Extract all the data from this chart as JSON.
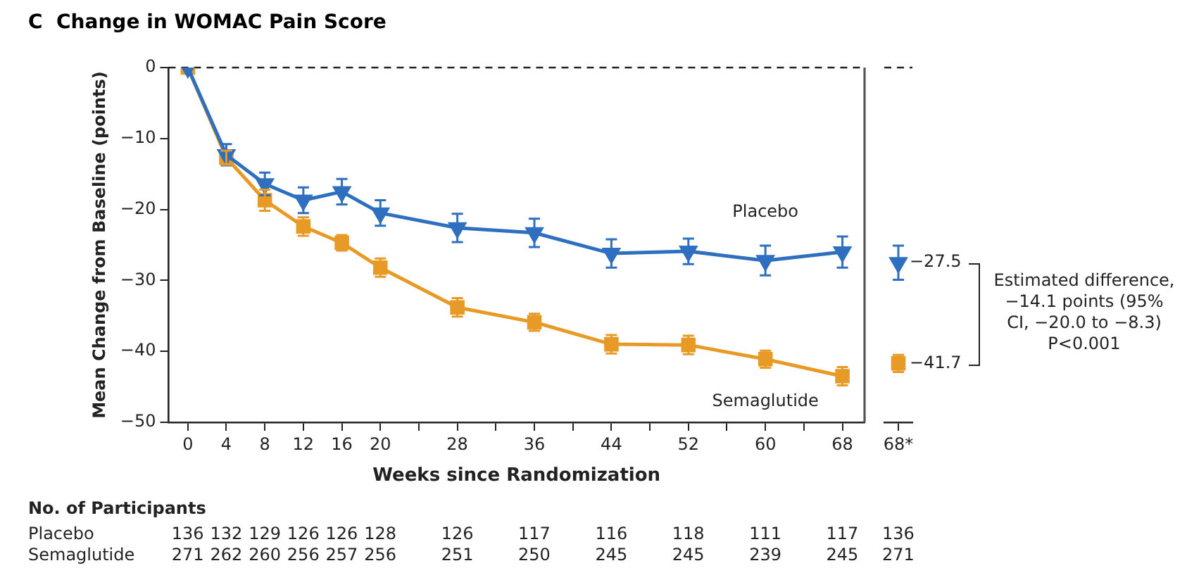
{
  "chart_data": [
    {
      "type": "line",
      "title": "C  Change in WOMAC Pain Score",
      "xlabel": "Weeks since Randomization",
      "ylabel": "Mean Change from Baseline (points)",
      "x": [
        0,
        4,
        8,
        12,
        16,
        20,
        28,
        36,
        44,
        52,
        60,
        68
      ],
      "series": [
        {
          "name": "Placebo",
          "color": "#2e6fc0",
          "marker": "triangle",
          "values": [
            0,
            -12.3,
            -16.4,
            -18.7,
            -17.5,
            -20.5,
            -22.6,
            -23.3,
            -26.2,
            -25.9,
            -27.2,
            -26.0
          ],
          "errors": [
            null,
            1.5,
            1.6,
            1.8,
            1.8,
            1.8,
            2,
            2,
            2,
            1.8,
            2.1,
            2.2
          ]
        },
        {
          "name": "Semaglutide",
          "color": "#e89a26",
          "marker": "square",
          "values": [
            0,
            -12.7,
            -18.7,
            -22.4,
            -24.7,
            -28.2,
            -33.8,
            -35.9,
            -39.0,
            -39.1,
            -41.1,
            -43.5
          ],
          "errors": [
            null,
            1,
            1.5,
            1.3,
            1.1,
            1.3,
            1.3,
            1.2,
            1.3,
            1.3,
            1.2,
            1.3
          ]
        }
      ],
      "xlim": [
        -2,
        70.3
      ],
      "xticks": [
        0,
        4,
        8,
        12,
        16,
        20,
        {
          "value": 24,
          "label": null
        },
        28,
        {
          "value": 32,
          "label": null
        },
        36,
        {
          "value": 40,
          "label": null
        },
        44,
        {
          "value": 48,
          "label": null
        },
        52,
        {
          "value": 56,
          "label": null
        },
        60,
        {
          "value": 64,
          "label": null
        },
        68
      ],
      "ylim": [
        -50,
        0
      ],
      "yticks": [
        {
          "value": -50,
          "label": "−50"
        },
        {
          "value": -40,
          "label": "−40"
        },
        {
          "value": -30,
          "label": "−30"
        },
        {
          "value": -20,
          "label": "−20"
        },
        {
          "value": -10,
          "label": "−10"
        },
        0
      ],
      "ref_lines": [
        {
          "axis": "y",
          "value": 0,
          "line_style": "dashed",
          "color": "#222222"
        },
        {
          "axis": "x",
          "value": 70.3,
          "color": "#555555"
        }
      ],
      "legend": false,
      "annotations": [
        "No. of Participants",
        "Placebo",
        "136 132 129 126 126 128 126 117 116 118 111 117",
        "Semaglutide",
        "271 262 260 256 257 256 251 250 245 245 239 245"
      ]
    },
    {
      "type": "scatter",
      "categories": [
        "68*"
      ],
      "series": [
        {
          "color": "#2e6fc0",
          "marker": "triangle",
          "values": [
            -27.5
          ],
          "errors": [
            2.4
          ],
          "value_labels": [
            "−27.5"
          ]
        },
        {
          "color": "#e89a26",
          "marker": "square",
          "values": [
            -41.7
          ],
          "errors": [
            1.2
          ],
          "value_labels": [
            "−41.7"
          ]
        }
      ],
      "ylim": [
        -50,
        0
      ],
      "tick_labels": "x",
      "ref_lines": [
        {
          "axis": "y",
          "value": 0,
          "line_style": "dashed",
          "color": "#222222"
        }
      ],
      "legend": false,
      "annotations": [
        "Estimated difference, −14.1 points (95% CI, −20.0 to −8.3) P<0.001",
        "136",
        "271"
      ]
    }
  ]
}
